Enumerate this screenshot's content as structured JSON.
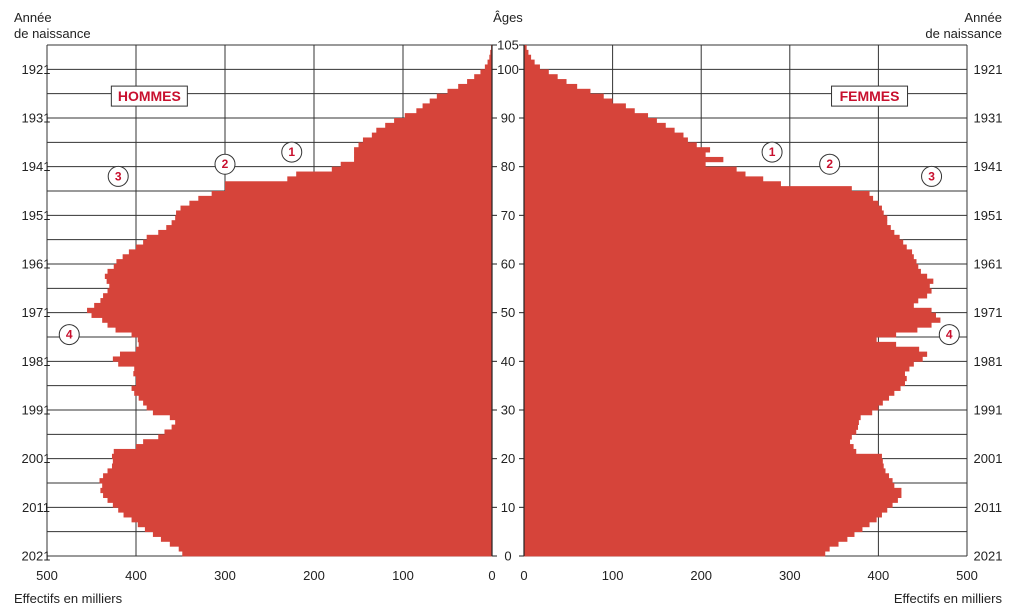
{
  "chart_data": {
    "type": "bar",
    "orientation": "horizontal-pyramid",
    "header_left": [
      "Année",
      "de naissance"
    ],
    "header_center": "Âges",
    "header_right": [
      "Année",
      "de naissance"
    ],
    "footer_left": "Effectifs en milliers",
    "footer_right": "Effectifs en milliers",
    "xlim": [
      0,
      500
    ],
    "x_ticks": [
      0,
      100,
      200,
      300,
      400,
      500
    ],
    "age_range": [
      0,
      105
    ],
    "age_ticks": [
      0,
      10,
      20,
      30,
      40,
      50,
      60,
      70,
      80,
      90,
      100,
      105
    ],
    "birth_year_ticks": [
      {
        "year": 1921,
        "age": 100
      },
      {
        "year": 1931,
        "age": 90
      },
      {
        "year": 1941,
        "age": 80
      },
      {
        "year": 1951,
        "age": 70
      },
      {
        "year": 1961,
        "age": 60
      },
      {
        "year": 1971,
        "age": 50
      },
      {
        "year": 1981,
        "age": 40
      },
      {
        "year": 1991,
        "age": 30
      },
      {
        "year": 2001,
        "age": 20
      },
      {
        "year": 2011,
        "age": 10
      },
      {
        "year": 2021,
        "age": 0
      }
    ],
    "color": "#d6443a",
    "men_label": "HOMMES",
    "women_label": "FEMMES",
    "annotations_men": [
      {
        "label": "1",
        "age": 83,
        "value": 225
      },
      {
        "label": "2",
        "age": 80.5,
        "value": 300
      },
      {
        "label": "3",
        "age": 78,
        "value": 420
      },
      {
        "label": "4",
        "age": 45.5,
        "value": 475
      }
    ],
    "annotations_women": [
      {
        "label": "1",
        "age": 83,
        "value": 280
      },
      {
        "label": "2",
        "age": 80.5,
        "value": 345
      },
      {
        "label": "3",
        "age": 78,
        "value": 460
      },
      {
        "label": "4",
        "age": 45.5,
        "value": 480
      }
    ],
    "ages": [
      0,
      1,
      2,
      3,
      4,
      5,
      6,
      7,
      8,
      9,
      10,
      11,
      12,
      13,
      14,
      15,
      16,
      17,
      18,
      19,
      20,
      21,
      22,
      23,
      24,
      25,
      26,
      27,
      28,
      29,
      30,
      31,
      32,
      33,
      34,
      35,
      36,
      37,
      38,
      39,
      40,
      41,
      42,
      43,
      44,
      45,
      46,
      47,
      48,
      49,
      50,
      51,
      52,
      53,
      54,
      55,
      56,
      57,
      58,
      59,
      60,
      61,
      62,
      63,
      64,
      65,
      66,
      67,
      68,
      69,
      70,
      71,
      72,
      73,
      74,
      75,
      76,
      77,
      78,
      79,
      80,
      81,
      82,
      83,
      84,
      85,
      86,
      87,
      88,
      89,
      90,
      91,
      92,
      93,
      94,
      95,
      96,
      97,
      98,
      99,
      100,
      101,
      102,
      103,
      104
    ],
    "series": [
      {
        "name": "HOMMES",
        "values": [
          348,
          352,
          362,
          372,
          381,
          390,
          398,
          405,
          414,
          420,
          426,
          432,
          437,
          440,
          438,
          441,
          437,
          432,
          427,
          426,
          427,
          425,
          400,
          392,
          375,
          368,
          360,
          356,
          362,
          381,
          388,
          392,
          397,
          402,
          405,
          400,
          400,
          403,
          402,
          420,
          426,
          418,
          400,
          397,
          398,
          405,
          423,
          432,
          438,
          450,
          455,
          447,
          440,
          437,
          432,
          430,
          433,
          435,
          432,
          425,
          422,
          415,
          408,
          400,
          392,
          388,
          375,
          366,
          360,
          356,
          355,
          350,
          340,
          330,
          315,
          300,
          300,
          230,
          220,
          180,
          170,
          155,
          155,
          155,
          150,
          145,
          135,
          130,
          120,
          110,
          98,
          85,
          78,
          70,
          62,
          50,
          38,
          28,
          20,
          13,
          8,
          5,
          3,
          2,
          1
        ]
      },
      {
        "name": "FEMMES",
        "values": [
          340,
          345,
          355,
          365,
          373,
          382,
          390,
          398,
          404,
          410,
          416,
          422,
          426,
          426,
          418,
          416,
          412,
          408,
          406,
          405,
          404,
          375,
          372,
          368,
          370,
          375,
          377,
          378,
          380,
          393,
          400,
          405,
          412,
          418,
          425,
          430,
          432,
          430,
          435,
          440,
          450,
          455,
          446,
          420,
          398,
          420,
          444,
          460,
          470,
          465,
          460,
          440,
          445,
          455,
          460,
          458,
          462,
          455,
          448,
          445,
          443,
          440,
          438,
          432,
          428,
          424,
          418,
          414,
          410,
          410,
          406,
          404,
          400,
          394,
          390,
          370,
          290,
          270,
          250,
          240,
          205,
          225,
          205,
          210,
          195,
          185,
          180,
          170,
          160,
          150,
          140,
          125,
          115,
          100,
          90,
          75,
          60,
          48,
          38,
          28,
          18,
          12,
          8,
          5,
          3
        ]
      }
    ]
  }
}
